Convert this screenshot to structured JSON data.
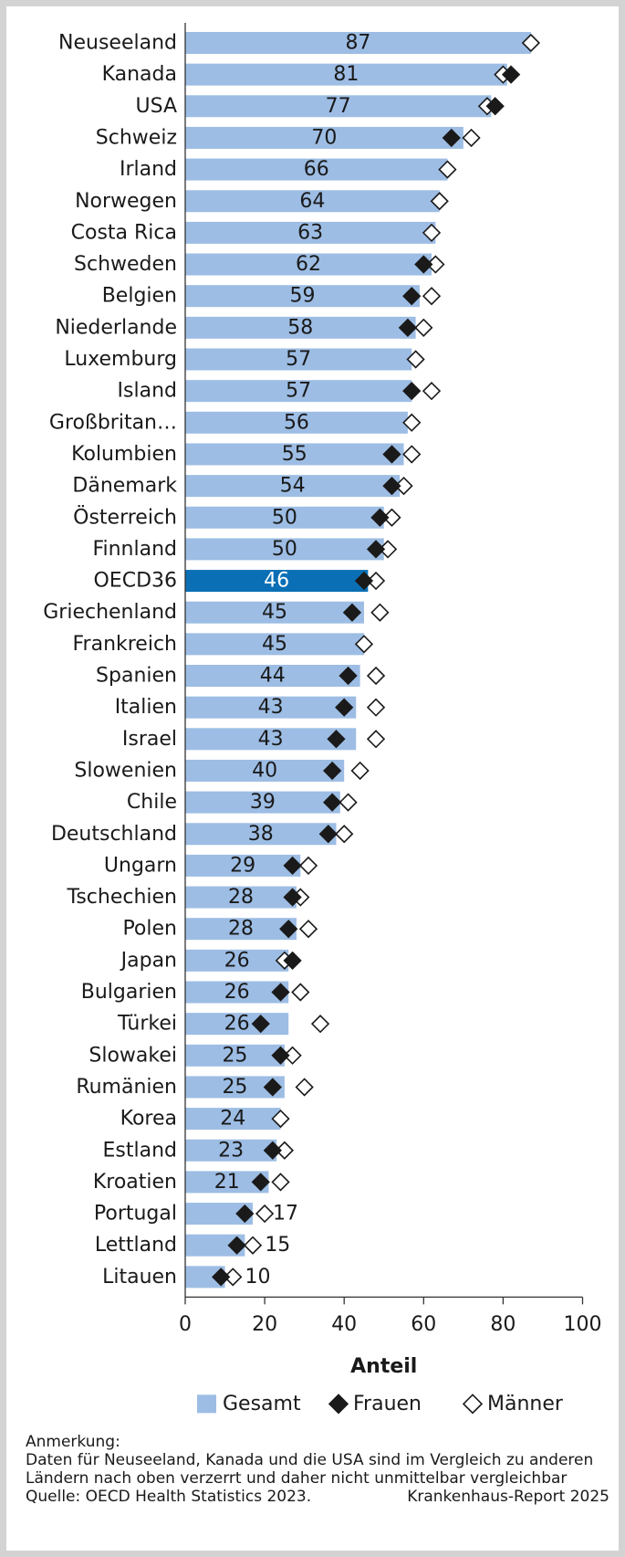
{
  "chart_data": {
    "type": "bar",
    "orientation": "horizontal",
    "xlabel": "Anteil",
    "xlim": [
      0,
      100
    ],
    "xticks": [
      0,
      20,
      40,
      60,
      80,
      100
    ],
    "highlight_category": "OECD36",
    "colors": {
      "bar": "#9dbde4",
      "highlight": "#0b6fb5",
      "highlight_text": "#ffffff",
      "text": "#1a1a1a",
      "axis": "#333333"
    },
    "legend": {
      "position": "bottom",
      "items": [
        "Gesamt",
        "Frauen",
        "Männer"
      ]
    },
    "categories": [
      "Neuseeland",
      "Kanada",
      "USA",
      "Schweiz",
      "Irland",
      "Norwegen",
      "Costa Rica",
      "Schweden",
      "Belgien",
      "Niederlande",
      "Luxemburg",
      "Island",
      "Großbritan…",
      "Kolumbien",
      "Dänemark",
      "Österreich",
      "Finnland",
      "OECD36",
      "Griechenland",
      "Frankreich",
      "Spanien",
      "Italien",
      "Israel",
      "Slowenien",
      "Chile",
      "Deutschland",
      "Ungarn",
      "Tschechien",
      "Polen",
      "Japan",
      "Bulgarien",
      "Türkei",
      "Slowakei",
      "Rumänien",
      "Korea",
      "Estland",
      "Kroatien",
      "Portugal",
      "Lettland",
      "Litauen"
    ],
    "series": [
      {
        "name": "Gesamt",
        "marker": "bar",
        "values": [
          87,
          81,
          77,
          70,
          66,
          64,
          63,
          62,
          59,
          58,
          57,
          57,
          56,
          55,
          54,
          50,
          50,
          46,
          45,
          45,
          44,
          43,
          43,
          40,
          39,
          38,
          29,
          28,
          28,
          26,
          26,
          26,
          25,
          25,
          24,
          23,
          21,
          17,
          15,
          10
        ]
      },
      {
        "name": "Frauen",
        "marker": "filled-diamond",
        "values": [
          null,
          82,
          78,
          67,
          null,
          null,
          null,
          60,
          57,
          56,
          null,
          57,
          null,
          52,
          52,
          49,
          48,
          45,
          42,
          null,
          41,
          40,
          38,
          37,
          37,
          36,
          27,
          27,
          26,
          27,
          24,
          19,
          24,
          22,
          null,
          22,
          19,
          15,
          13,
          9
        ]
      },
      {
        "name": "Männer",
        "marker": "open-diamond",
        "values": [
          87,
          80,
          76,
          72,
          66,
          64,
          62,
          63,
          62,
          60,
          58,
          62,
          57,
          57,
          55,
          52,
          51,
          48,
          49,
          45,
          48,
          48,
          48,
          44,
          41,
          40,
          31,
          29,
          31,
          25,
          29,
          34,
          27,
          30,
          24,
          25,
          24,
          20,
          17,
          12
        ]
      }
    ]
  },
  "footer": {
    "note_title": "Anmerkung:",
    "note_text": "Daten für Neuseeland, Kanada und die USA sind im Vergleich zu anderen Ländern nach oben verzerrt und daher nicht unmittelbar vergleichbar",
    "source": "Quelle: OECD Health Statistics 2023.",
    "report": "Krankenhaus-Report 2025"
  }
}
